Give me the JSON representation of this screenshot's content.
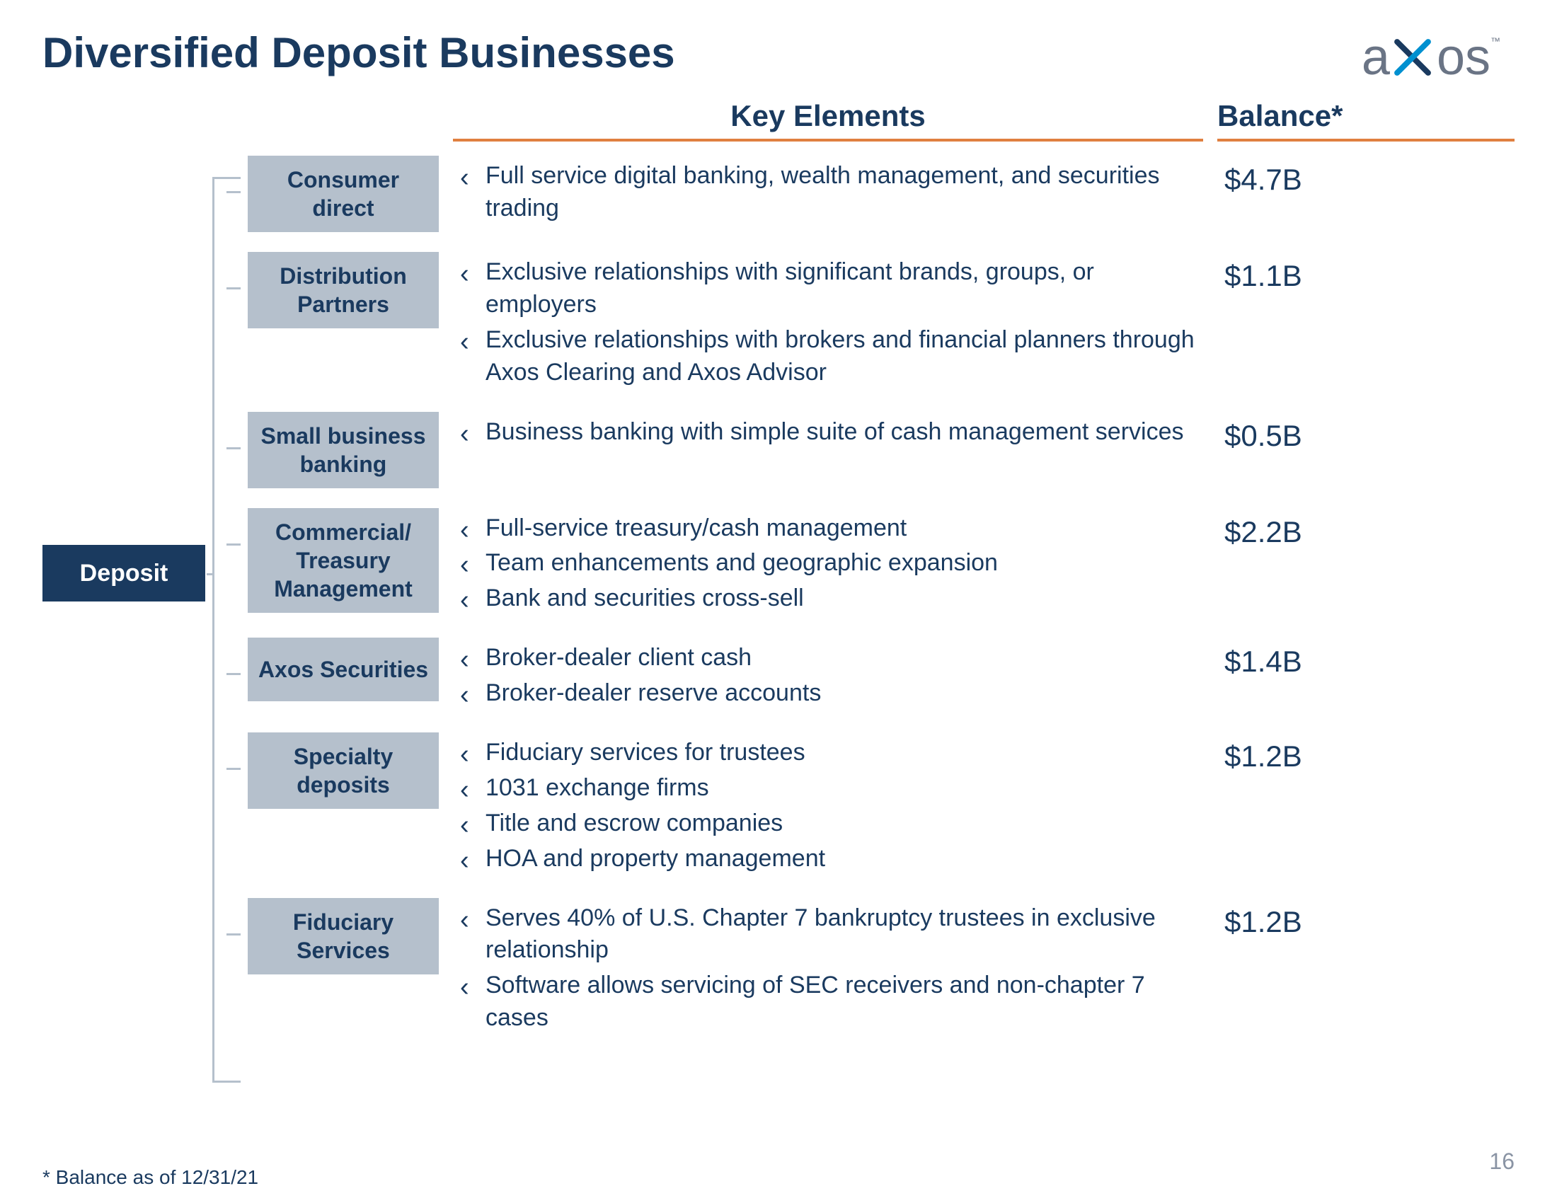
{
  "title": "Diversified Deposit Businesses",
  "logo": {
    "brand": "axos"
  },
  "columns": {
    "key_elements": "Key Elements",
    "balance": "Balance*"
  },
  "root_label": "Deposit",
  "rows": [
    {
      "category": "Consumer direct",
      "bullets": [
        "Full service digital banking, wealth management, and securities trading"
      ],
      "balance": "$4.7B"
    },
    {
      "category": "Distribution Partners",
      "bullets": [
        "Exclusive relationships with significant brands, groups, or employers",
        "Exclusive relationships with brokers and financial planners through Axos Clearing and Axos Advisor"
      ],
      "balance": "$1.1B"
    },
    {
      "category": "Small business banking",
      "bullets": [
        "Business banking with simple suite of cash management services"
      ],
      "balance": "$0.5B"
    },
    {
      "category": "Commercial/ Treasury Management",
      "bullets": [
        "Full-service treasury/cash management",
        "Team enhancements and geographic expansion",
        "Bank and securities cross-sell"
      ],
      "balance": "$2.2B"
    },
    {
      "category": "Axos Securities",
      "bullets": [
        "Broker-dealer client cash",
        "Broker-dealer reserve accounts"
      ],
      "balance": "$1.4B"
    },
    {
      "category": "Specialty deposits",
      "bullets": [
        "Fiduciary services for trustees",
        "1031 exchange firms",
        "Title and escrow companies",
        "HOA and property management"
      ],
      "balance": "$1.2B"
    },
    {
      "category": "Fiduciary Services",
      "bullets": [
        "Serves 40% of U.S. Chapter 7 bankruptcy trustees in exclusive relationship",
        "Software allows servicing of SEC receivers and non-chapter 7 cases"
      ],
      "balance": "$1.2B"
    }
  ],
  "footnote": "* Balance as of 12/31/21",
  "page_number": "16",
  "colors": {
    "primary_text": "#1a3a5f",
    "category_bg": "#b5c0cc",
    "accent_underline": "#e08040",
    "logo_gray": "#6a7485",
    "logo_blue": "#0090d0"
  }
}
